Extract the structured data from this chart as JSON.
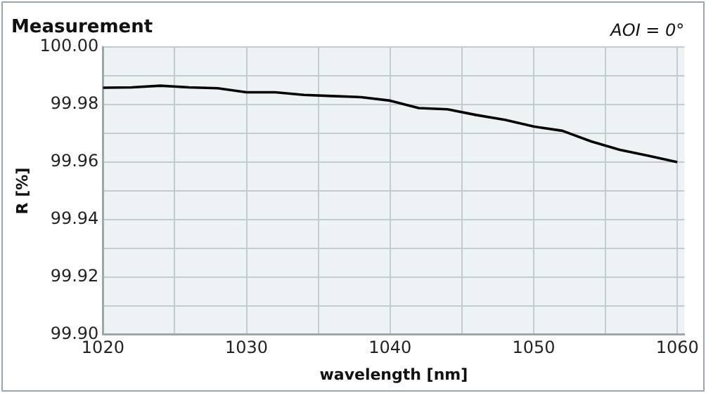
{
  "chart_data": {
    "type": "line",
    "title": "Measurement",
    "annotations": [
      "AOI = 0°"
    ],
    "xlabel": "wavelength [nm]",
    "ylabel": "R [%]",
    "x": [
      1020,
      1022,
      1024,
      1026,
      1028,
      1030,
      1032,
      1034,
      1036,
      1038,
      1040,
      1042,
      1044,
      1046,
      1048,
      1050,
      1052,
      1054,
      1056,
      1058,
      1060
    ],
    "series": [
      {
        "color": "#000000",
        "values": [
          99.9859,
          99.986,
          99.9866,
          99.986,
          99.9857,
          99.9843,
          99.9843,
          99.9834,
          99.983,
          99.9826,
          99.9814,
          99.9788,
          99.9784,
          99.9764,
          99.9747,
          99.9724,
          99.9709,
          99.9672,
          99.9643,
          99.9622,
          99.96
        ]
      }
    ],
    "xlim": [
      1020,
      1060.5
    ],
    "xticks": [
      1020,
      {
        "value": 1025,
        "label": null
      },
      1030,
      {
        "value": 1035,
        "label": null
      },
      1040,
      {
        "value": 1045,
        "label": null
      },
      1050,
      {
        "value": 1055,
        "label": null
      },
      1060
    ],
    "ylim": [
      99.9,
      100
    ],
    "yticks": [
      {
        "value": 99.9,
        "label": "99.90"
      },
      {
        "value": 99.91,
        "label": null
      },
      {
        "value": 99.92,
        "label": "99.92"
      },
      {
        "value": 99.93,
        "label": null
      },
      {
        "value": 99.94,
        "label": "99.94"
      },
      {
        "value": 99.95,
        "label": null
      },
      {
        "value": 99.96,
        "label": "99.96"
      },
      {
        "value": 99.97,
        "label": null
      },
      {
        "value": 99.98,
        "label": "99.98"
      },
      {
        "value": 99.99,
        "label": null
      },
      {
        "value": 100,
        "label": "100.00"
      }
    ],
    "grid": true,
    "legend": false,
    "marker": "none",
    "line_style": "solid"
  }
}
